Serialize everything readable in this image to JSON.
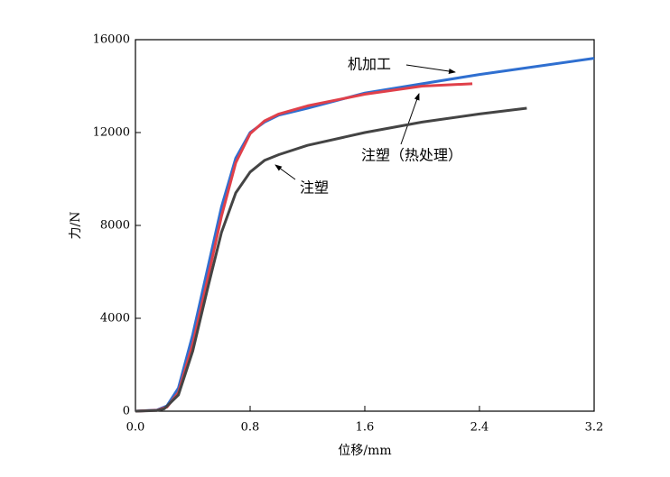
{
  "chart_data": {
    "type": "line",
    "x_label": "位移/mm",
    "y_label": "力/N",
    "xlim": [
      0,
      3.2
    ],
    "ylim": [
      0,
      16000
    ],
    "xticks": [
      {
        "value": 0,
        "label": "0.0"
      },
      0.8,
      1.6,
      2.4,
      3.2
    ],
    "yticks": [
      0,
      4000,
      8000,
      12000,
      16000
    ],
    "grid": false,
    "annotations": [
      "机加工",
      "注塑（热处理）",
      "注塑"
    ],
    "series": [
      {
        "color": "#2f6fd0",
        "x": [
          0,
          0.15,
          0.22,
          0.3,
          0.4,
          0.5,
          0.6,
          0.7,
          0.8,
          0.9,
          1.0,
          1.2,
          1.6,
          2.0,
          2.4,
          2.8,
          3.2
        ],
        "values": [
          0,
          50,
          230,
          1000,
          3300,
          6050,
          8800,
          10900,
          12000,
          12450,
          12750,
          13050,
          13700,
          14100,
          14500,
          14850,
          15200
        ]
      },
      {
        "color": "#e0404a",
        "x": [
          0,
          0.15,
          0.22,
          0.3,
          0.4,
          0.5,
          0.6,
          0.7,
          0.8,
          0.9,
          1.0,
          1.2,
          1.6,
          2.0,
          2.35
        ],
        "values": [
          0,
          40,
          180,
          800,
          2900,
          5600,
          8400,
          10700,
          11950,
          12500,
          12800,
          13150,
          13650,
          14000,
          14100
        ]
      },
      {
        "color": "#444444",
        "x": [
          0,
          0.15,
          0.2,
          0.3,
          0.4,
          0.5,
          0.6,
          0.7,
          0.8,
          0.9,
          1.0,
          1.2,
          1.6,
          2.0,
          2.4,
          2.73
        ],
        "values": [
          0,
          30,
          100,
          700,
          2600,
          5200,
          7700,
          9400,
          10300,
          10800,
          11050,
          11450,
          12000,
          12450,
          12800,
          13050
        ]
      }
    ]
  }
}
